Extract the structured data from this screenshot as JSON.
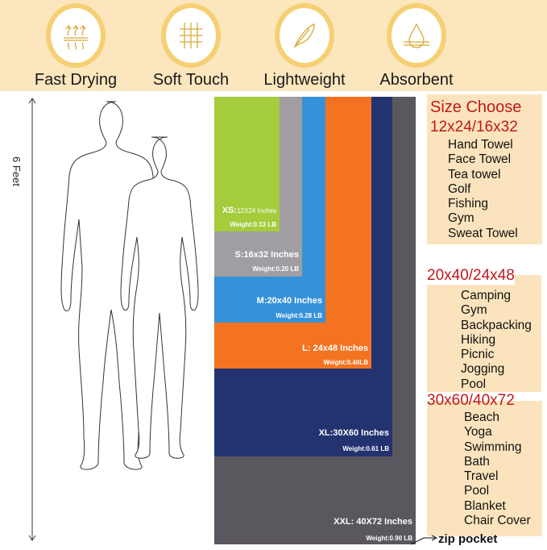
{
  "features": [
    {
      "label": "Fast Drying",
      "icon": "heat-waves-icon"
    },
    {
      "label": "Soft Touch",
      "icon": "fabric-weave-icon"
    },
    {
      "label": "Lightweight",
      "icon": "feather-icon"
    },
    {
      "label": "Absorbent",
      "icon": "water-drop-icon"
    }
  ],
  "height_label": "6 Feet",
  "towels": [
    {
      "size": "XS:",
      "dims": "12X24 Inches",
      "weight": "Weight:0.13 LB",
      "color": "#a4cc3c"
    },
    {
      "size": "S:16x32 Inches",
      "weight": "Weight:0.20 LB",
      "color": "#a09ea2"
    },
    {
      "size": "M:20x40 Inches",
      "weight": "Weight:0.28 LB",
      "color": "#3592d8"
    },
    {
      "size": "L: 24x48 Inches",
      "weight": "Weight:0.40LB",
      "color": "#f47320"
    },
    {
      "size": "XL:30X60 Inches",
      "weight": "Weight:0.61 LB",
      "color": "#233370"
    },
    {
      "size": "XXL: 40X72 Inches",
      "weight": "Weight:0.90 LB",
      "color": "#5b575e"
    }
  ],
  "size_choose": {
    "title": "Size Choose",
    "groups": [
      {
        "sizes": "12x24/16x32",
        "uses": [
          "Hand Towel",
          "Face Towel",
          "Tea towel",
          "Golf",
          "Fishing",
          "Gym",
          "Sweat Towel"
        ]
      },
      {
        "sizes": "20x40/24x48",
        "uses": [
          "Camping",
          "Gym",
          "Backpacking",
          "Hiking",
          "Picnic",
          "Jogging",
          "Pool"
        ]
      },
      {
        "sizes": "30x60/40x72",
        "uses": [
          "Beach",
          "Yoga",
          "Swimming",
          "Bath",
          "Travel",
          "Pool",
          "Blanket",
          "Chair Cover"
        ]
      }
    ]
  },
  "zip_pocket": "zip pocket",
  "colors": {
    "banner": "#fbe6bd",
    "heading_red": "#c0181c",
    "icon_gold": "#d9a93a"
  }
}
